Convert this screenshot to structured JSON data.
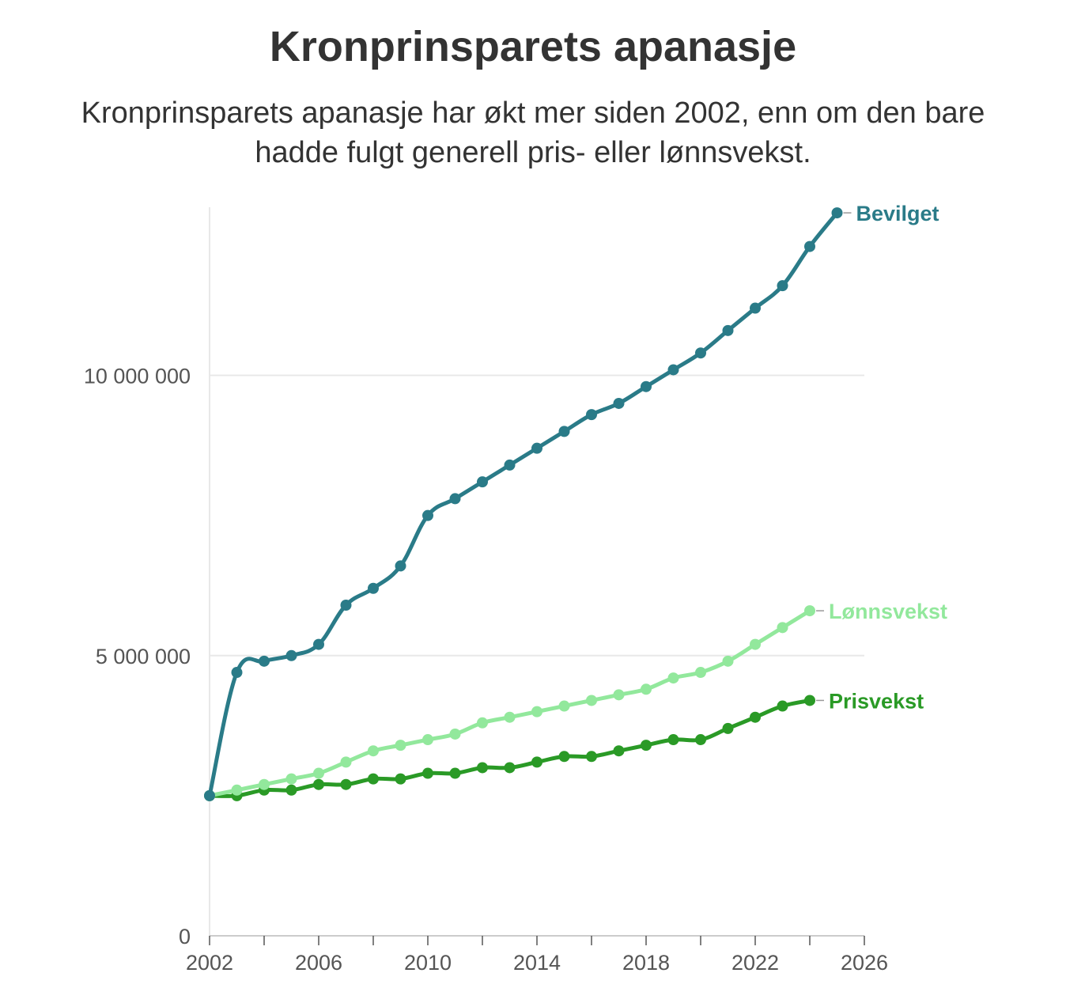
{
  "chart_data": {
    "type": "line",
    "title": "Kronprinsparets apanasje",
    "subtitle": "Kronprinsparets apanasje har økt mer siden 2002, enn om den bare hadde fulgt generell pris- eller lønnsvekst.",
    "xlabel": "",
    "ylabel": "",
    "xlim": [
      2002,
      2026
    ],
    "ylim": [
      0,
      13000000
    ],
    "x_ticks": [
      2002,
      2006,
      2010,
      2014,
      2018,
      2022,
      2026
    ],
    "x_tick_labels": [
      "2002",
      "2006",
      "2010",
      "2014",
      "2018",
      "2022",
      "2026"
    ],
    "y_ticks": [
      0,
      5000000,
      10000000
    ],
    "y_tick_labels": [
      "0",
      "5 000 000",
      "10 000 000"
    ],
    "grid": "horizontal",
    "legend": "direct labels at line ends",
    "series": [
      {
        "name": "Bevilget",
        "color": "#2a7b88",
        "x": [
          2002,
          2003,
          2004,
          2005,
          2006,
          2007,
          2008,
          2009,
          2010,
          2011,
          2012,
          2013,
          2014,
          2015,
          2016,
          2017,
          2018,
          2019,
          2020,
          2021,
          2022,
          2023,
          2024,
          2025
        ],
        "values": [
          2500000,
          4700000,
          4900000,
          5000000,
          5200000,
          5900000,
          6200000,
          6600000,
          7500000,
          7800000,
          8100000,
          8400000,
          8700000,
          9000000,
          9300000,
          9500000,
          9800000,
          10100000,
          10400000,
          10800000,
          11200000,
          11600000,
          12300000,
          12900000
        ]
      },
      {
        "name": "Lønnsvekst",
        "color": "#92e89c",
        "x": [
          2002,
          2003,
          2004,
          2005,
          2006,
          2007,
          2008,
          2009,
          2010,
          2011,
          2012,
          2013,
          2014,
          2015,
          2016,
          2017,
          2018,
          2019,
          2020,
          2021,
          2022,
          2023,
          2024
        ],
        "values": [
          2500000,
          2600000,
          2700000,
          2800000,
          2900000,
          3100000,
          3300000,
          3400000,
          3500000,
          3600000,
          3800000,
          3900000,
          4000000,
          4100000,
          4200000,
          4300000,
          4400000,
          4600000,
          4700000,
          4900000,
          5200000,
          5500000,
          5800000
        ]
      },
      {
        "name": "Prisvekst",
        "color": "#2a9a26",
        "x": [
          2002,
          2003,
          2004,
          2005,
          2006,
          2007,
          2008,
          2009,
          2010,
          2011,
          2012,
          2013,
          2014,
          2015,
          2016,
          2017,
          2018,
          2019,
          2020,
          2021,
          2022,
          2023,
          2024
        ],
        "values": [
          2500000,
          2500000,
          2600000,
          2600000,
          2700000,
          2700000,
          2800000,
          2800000,
          2900000,
          2900000,
          3000000,
          3000000,
          3100000,
          3200000,
          3200000,
          3300000,
          3400000,
          3500000,
          3500000,
          3700000,
          3900000,
          4100000,
          4200000
        ]
      }
    ]
  }
}
